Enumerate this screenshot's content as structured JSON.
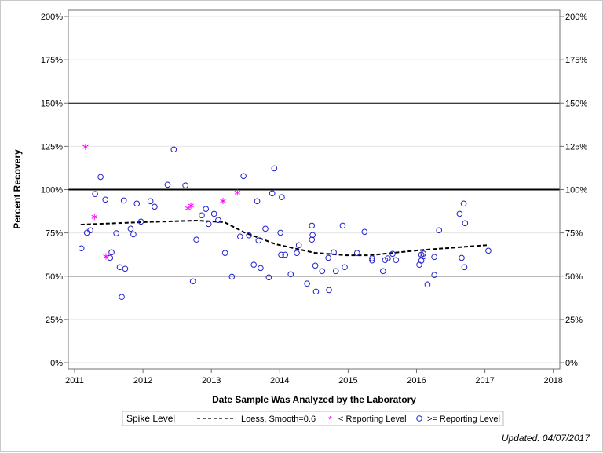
{
  "chart_data": {
    "type": "scatter",
    "title": "",
    "xlabel": "Date Sample Was Analyzed by the Laboratory",
    "ylabel": "Percent Recovery",
    "xlim": [
      2010.85,
      2018.1
    ],
    "ylim": [
      -3.5,
      203.5
    ],
    "x_ticks": [
      2011,
      2012,
      2013,
      2014,
      2015,
      2016,
      2017,
      2018
    ],
    "y_ticks": [
      0,
      25,
      50,
      75,
      100,
      125,
      150,
      175,
      200
    ],
    "y_tick_format": "%",
    "y_axis_mirrored_right": true,
    "grid": true,
    "reference_lines": [
      {
        "y": 50,
        "color": "#000000",
        "style": "thin"
      },
      {
        "y": 100,
        "color": "#000000",
        "style": "thick"
      },
      {
        "y": 150,
        "color": "#000000",
        "style": "thin"
      }
    ],
    "legend": {
      "placement": "bottom",
      "title": "Spike Level",
      "entries": [
        {
          "label": "Loess, Smooth=0.6",
          "symbol": "dashed-line",
          "color": "#000000"
        },
        {
          "label": "< Reporting Level",
          "symbol": "asterisk",
          "color": "#ff00ff"
        },
        {
          "label": ">= Reporting Level",
          "symbol": "circle",
          "color": "#2222cc"
        }
      ]
    },
    "series": [
      {
        "name": "Loess, Smooth=0.6",
        "kind": "line",
        "color": "#000000",
        "points": [
          [
            2011.09,
            79.8
          ],
          [
            2011.99,
            81.2
          ],
          [
            2012.79,
            82.1
          ],
          [
            2013.19,
            81.2
          ],
          [
            2013.48,
            75.3
          ],
          [
            2013.94,
            68.5
          ],
          [
            2014.51,
            63.5
          ],
          [
            2014.97,
            62.1
          ],
          [
            2015.32,
            62.1
          ],
          [
            2016.01,
            64.9
          ],
          [
            2017.05,
            68.0
          ]
        ]
      },
      {
        "name": "< Reporting Level",
        "kind": "asterisk",
        "color": "#ff00ff",
        "points": [
          [
            2011.16,
            124.7
          ],
          [
            2011.29,
            84.2
          ],
          [
            2011.46,
            61.4
          ],
          [
            2012.66,
            89.2
          ],
          [
            2012.7,
            90.8
          ],
          [
            2013.17,
            93.4
          ],
          [
            2013.38,
            98.3
          ]
        ]
      },
      {
        "name": ">= Reporting Level",
        "kind": "circle",
        "color": "#2222cc",
        "points": [
          [
            2011.18,
            75.1
          ],
          [
            2011.23,
            76.5
          ],
          [
            2011.1,
            66.1
          ],
          [
            2011.3,
            97.4
          ],
          [
            2011.38,
            107.3
          ],
          [
            2011.45,
            94.2
          ],
          [
            2011.52,
            60.6
          ],
          [
            2011.54,
            63.8
          ],
          [
            2011.61,
            74.8
          ],
          [
            2011.66,
            55.2
          ],
          [
            2011.74,
            54.3
          ],
          [
            2011.69,
            38.0
          ],
          [
            2011.72,
            93.7
          ],
          [
            2011.82,
            77.4
          ],
          [
            2011.86,
            74.2
          ],
          [
            2011.91,
            91.9
          ],
          [
            2011.97,
            81.5
          ],
          [
            2012.11,
            93.3
          ],
          [
            2012.17,
            90.1
          ],
          [
            2012.36,
            102.8
          ],
          [
            2012.45,
            123.2
          ],
          [
            2012.62,
            102.4
          ],
          [
            2012.73,
            47.0
          ],
          [
            2012.78,
            71.1
          ],
          [
            2012.86,
            85.1
          ],
          [
            2012.92,
            88.8
          ],
          [
            2012.96,
            80.1
          ],
          [
            2013.04,
            86.0
          ],
          [
            2013.1,
            82.4
          ],
          [
            2013.2,
            63.4
          ],
          [
            2013.3,
            49.7
          ],
          [
            2013.42,
            72.9
          ],
          [
            2013.47,
            107.8
          ],
          [
            2013.92,
            112.3
          ],
          [
            2013.89,
            97.8
          ],
          [
            2014.03,
            95.6
          ],
          [
            2013.67,
            93.3
          ],
          [
            2013.79,
            77.4
          ],
          [
            2013.55,
            73.6
          ],
          [
            2013.69,
            70.6
          ],
          [
            2014.01,
            75.1
          ],
          [
            2014.47,
            79.2
          ],
          [
            2014.48,
            73.8
          ],
          [
            2014.47,
            71.1
          ],
          [
            2014.92,
            79.2
          ],
          [
            2015.24,
            75.6
          ],
          [
            2014.28,
            67.9
          ],
          [
            2014.02,
            62.4
          ],
          [
            2014.08,
            62.4
          ],
          [
            2014.25,
            63.4
          ],
          [
            2014.71,
            60.6
          ],
          [
            2014.79,
            63.8
          ],
          [
            2015.13,
            63.4
          ],
          [
            2015.35,
            60.3
          ],
          [
            2015.35,
            59.1
          ],
          [
            2015.54,
            59.3
          ],
          [
            2015.58,
            60.3
          ],
          [
            2015.65,
            62.9
          ],
          [
            2013.62,
            56.6
          ],
          [
            2013.72,
            54.7
          ],
          [
            2014.52,
            56.1
          ],
          [
            2014.62,
            52.9
          ],
          [
            2014.82,
            52.9
          ],
          [
            2014.95,
            55.2
          ],
          [
            2015.51,
            52.9
          ],
          [
            2013.84,
            49.3
          ],
          [
            2014.16,
            51.1
          ],
          [
            2014.4,
            45.7
          ],
          [
            2014.53,
            41.1
          ],
          [
            2014.72,
            42.0
          ],
          [
            2016.69,
            91.9
          ],
          [
            2016.63,
            86.0
          ],
          [
            2016.71,
            80.6
          ],
          [
            2016.33,
            76.5
          ],
          [
            2017.05,
            64.7
          ],
          [
            2015.7,
            59.3
          ],
          [
            2016.07,
            62.4
          ],
          [
            2016.1,
            63.0
          ],
          [
            2016.1,
            61.5
          ],
          [
            2016.07,
            59.0
          ],
          [
            2016.04,
            56.6
          ],
          [
            2016.26,
            61.1
          ],
          [
            2016.66,
            60.6
          ],
          [
            2016.7,
            55.2
          ],
          [
            2016.26,
            50.7
          ],
          [
            2016.16,
            45.2
          ]
        ]
      }
    ]
  },
  "footer": {
    "updated": "Updated: 04/07/2017"
  }
}
